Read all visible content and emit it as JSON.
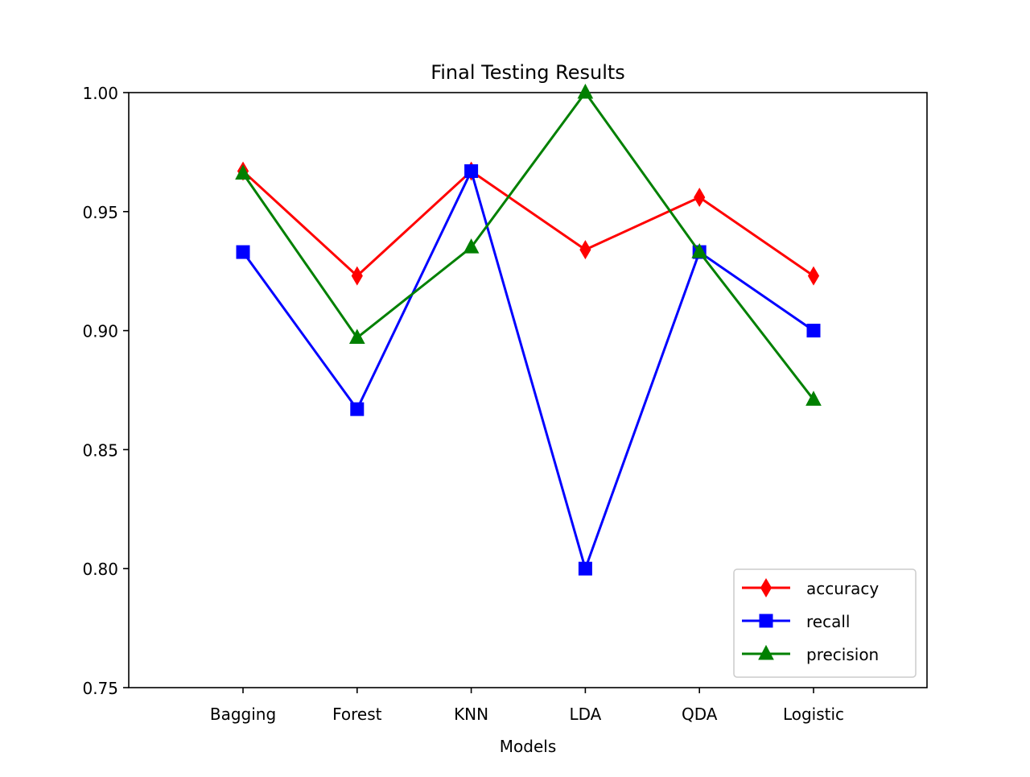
{
  "chart_data": {
    "type": "line",
    "title": "Final Testing Results",
    "xlabel": "Models",
    "ylabel": "",
    "categories": [
      "Bagging",
      "Forest",
      "KNN",
      "LDA",
      "QDA",
      "Logistic"
    ],
    "ylim": [
      0.75,
      1.0
    ],
    "yticks": [
      "0.75",
      "0.80",
      "0.85",
      "0.90",
      "0.95",
      "1.00"
    ],
    "grid": false,
    "legend_position": "lower-right",
    "series": [
      {
        "name": "accuracy",
        "color": "#ff0000",
        "marker": "diamond",
        "values": [
          0.967,
          0.923,
          0.967,
          0.934,
          0.956,
          0.923
        ]
      },
      {
        "name": "recall",
        "color": "#0000ff",
        "marker": "square",
        "values": [
          0.933,
          0.867,
          0.967,
          0.8,
          0.933,
          0.9
        ]
      },
      {
        "name": "precision",
        "color": "#008000",
        "marker": "triangle",
        "values": [
          0.966,
          0.897,
          0.935,
          1.0,
          0.933,
          0.871
        ]
      }
    ]
  }
}
